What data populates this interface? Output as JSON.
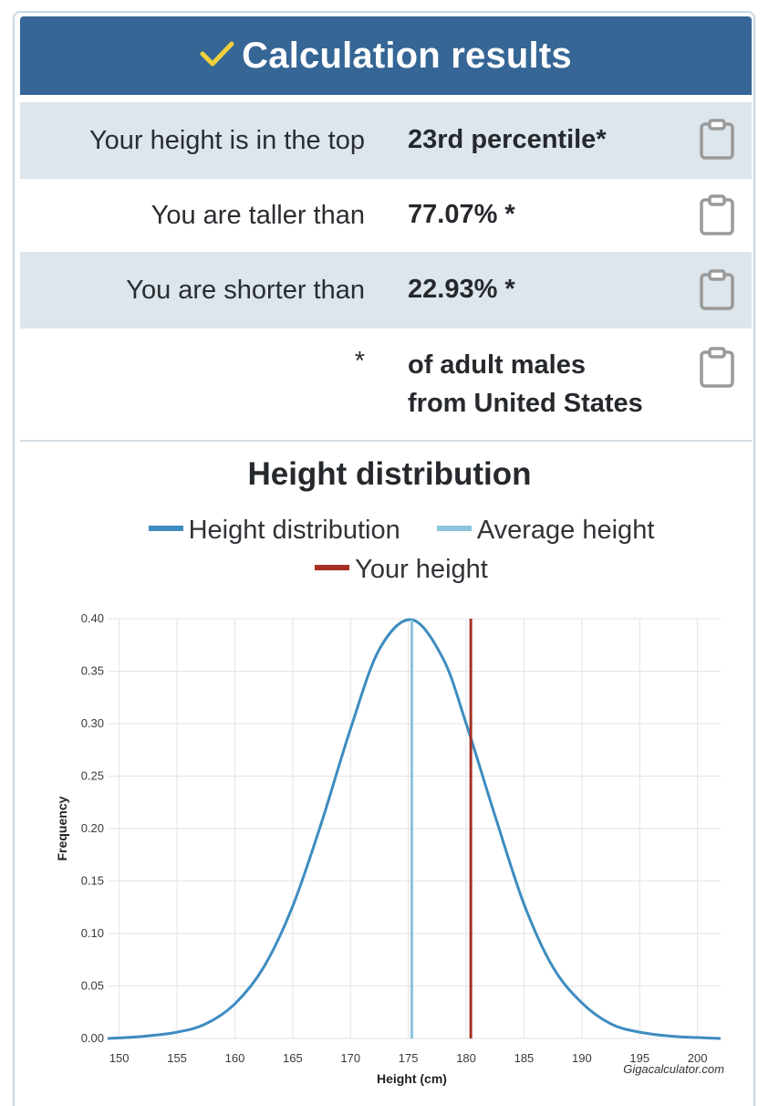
{
  "header": {
    "title": "Calculation results",
    "icon": "check-icon",
    "check_color": "#f2cf3e",
    "bg_color": "#356695"
  },
  "results": [
    {
      "label": "Your height is in the top",
      "value": "23rd percentile*"
    },
    {
      "label": "You are taller than",
      "value": "77.07% *"
    },
    {
      "label": "You are shorter than",
      "value": "22.93% *"
    },
    {
      "label": "*",
      "value_lines": [
        "of adult males",
        "from United States"
      ]
    }
  ],
  "chart_data": {
    "type": "line",
    "title": "Height distribution",
    "xlabel": "Height (cm)",
    "ylabel": "Frequency",
    "xlim": [
      149,
      202
    ],
    "ylim": [
      0,
      0.4
    ],
    "x_ticks": [
      150,
      155,
      160,
      165,
      170,
      175,
      180,
      185,
      190,
      195,
      200
    ],
    "y_ticks": [
      0.0,
      0.05,
      0.1,
      0.15,
      0.2,
      0.25,
      0.3,
      0.35,
      0.4
    ],
    "grid": true,
    "legend_position": "top",
    "legend": [
      "Height distribution",
      "Average height",
      "Your height"
    ],
    "series": [
      {
        "name": "Height distribution",
        "color": "#3e8cc0",
        "x": [
          149,
          152,
          155,
          157.5,
          160,
          162.5,
          165,
          167.5,
          170,
          172.5,
          175.3,
          178,
          180,
          182.5,
          185,
          187.5,
          190,
          192.5,
          195,
          198,
          202
        ],
        "y": [
          0.0,
          0.002,
          0.006,
          0.014,
          0.033,
          0.068,
          0.126,
          0.206,
          0.295,
          0.371,
          0.399,
          0.362,
          0.3,
          0.212,
          0.128,
          0.068,
          0.034,
          0.014,
          0.006,
          0.002,
          0.0
        ]
      },
      {
        "name": "Average height",
        "color": "#8cc4de",
        "x_value": 175.3
      },
      {
        "name": "Your height",
        "color": "#a43123",
        "x_value": 180.4
      }
    ],
    "watermark": "Gigacalculator.com"
  }
}
